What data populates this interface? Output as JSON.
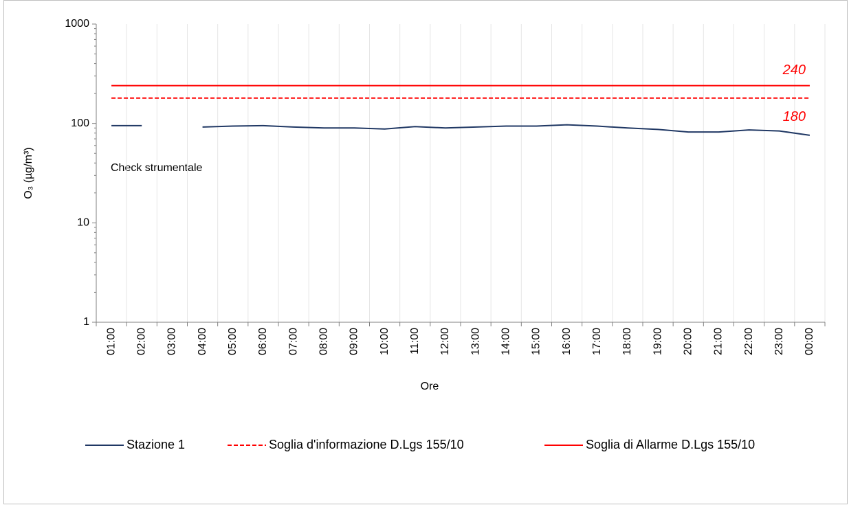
{
  "chart_data": {
    "type": "line",
    "categories": [
      "01:00",
      "02:00",
      "03:00",
      "04:00",
      "05:00",
      "06:00",
      "07:00",
      "08:00",
      "09:00",
      "10:00",
      "11:00",
      "12:00",
      "13:00",
      "14:00",
      "15:00",
      "16:00",
      "17:00",
      "18:00",
      "19:00",
      "20:00",
      "21:00",
      "22:00",
      "23:00",
      "00:00"
    ],
    "series": [
      {
        "name": "Stazione 1",
        "color": "#203864",
        "dash": false,
        "values": [
          95,
          95,
          null,
          92,
          94,
          95,
          92,
          90,
          90,
          88,
          93,
          90,
          92,
          94,
          94,
          97,
          94,
          90,
          87,
          82,
          82,
          86,
          84,
          76
        ]
      },
      {
        "name": "Soglia d'informazione D.Lgs 155/10",
        "color": "#ff0000",
        "dash": true,
        "values": [
          180,
          180,
          180,
          180,
          180,
          180,
          180,
          180,
          180,
          180,
          180,
          180,
          180,
          180,
          180,
          180,
          180,
          180,
          180,
          180,
          180,
          180,
          180,
          180
        ]
      },
      {
        "name": "Soglia di Allarme D.Lgs 155/10",
        "color": "#ff0000",
        "dash": false,
        "values": [
          240,
          240,
          240,
          240,
          240,
          240,
          240,
          240,
          240,
          240,
          240,
          240,
          240,
          240,
          240,
          240,
          240,
          240,
          240,
          240,
          240,
          240,
          240,
          240
        ]
      }
    ],
    "x_label": "Ore",
    "y_label": "O₃ (µg/m³)",
    "annotation": "Check strumentale",
    "ylim": [
      1,
      1000
    ],
    "yticks": [
      1,
      10,
      100,
      1000
    ],
    "log_y": true,
    "grid": true
  }
}
